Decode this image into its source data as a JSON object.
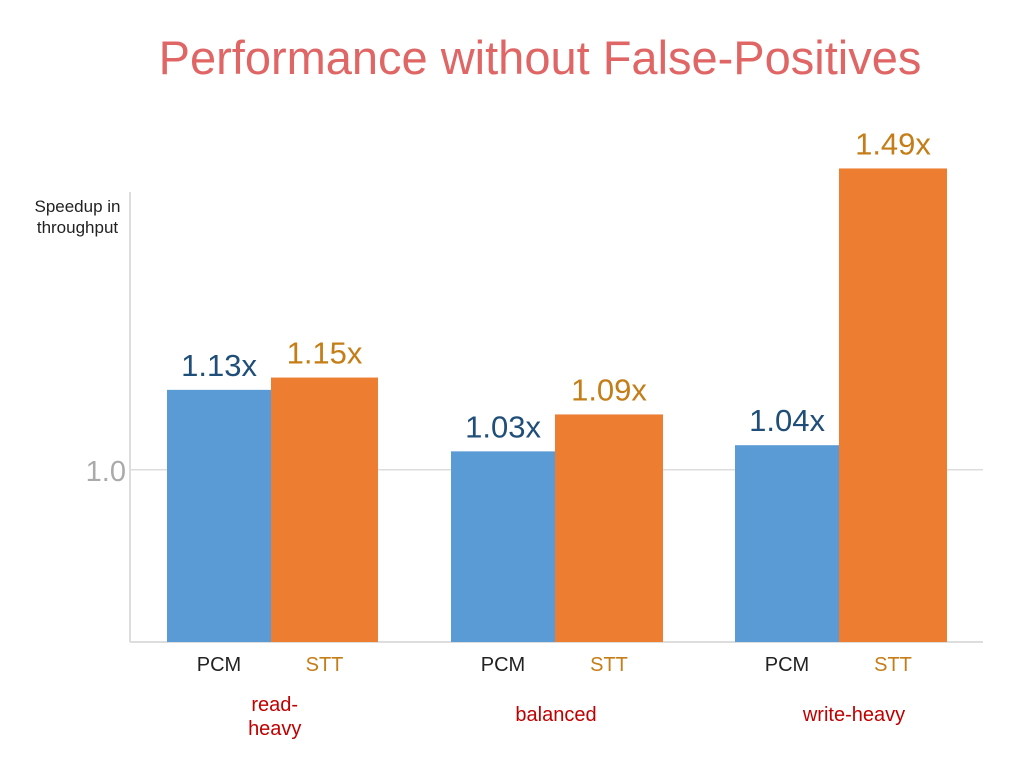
{
  "slide": {
    "title": "Performance without False-Positives"
  },
  "colors": {
    "title": "#e06666",
    "pcm_bar": "#5b9bd5",
    "stt_bar": "#ed7d31",
    "pcm_label": "#1f4e79",
    "stt_label": "#c47d17",
    "group_label": "#c00000",
    "axis": "#dddddd",
    "tick": "#aaaaaa"
  },
  "chart_data": {
    "type": "bar",
    "ylabel": "Speedup in throughput",
    "yticks": [
      {
        "value": 1.0,
        "label": "1.0"
      }
    ],
    "ylim": [
      0.72,
      1.52
    ],
    "grid": false,
    "legend": "none",
    "categories": [
      "read-heavy",
      "balanced",
      "write-heavy"
    ],
    "series": [
      {
        "name": "PCM",
        "values": [
          1.13,
          1.03,
          1.04
        ],
        "data_labels": [
          "1.13x",
          "1.03x",
          "1.04x"
        ]
      },
      {
        "name": "STT",
        "values": [
          1.15,
          1.09,
          1.49
        ],
        "data_labels": [
          "1.15x",
          "1.09x",
          "1.49x"
        ]
      }
    ]
  }
}
